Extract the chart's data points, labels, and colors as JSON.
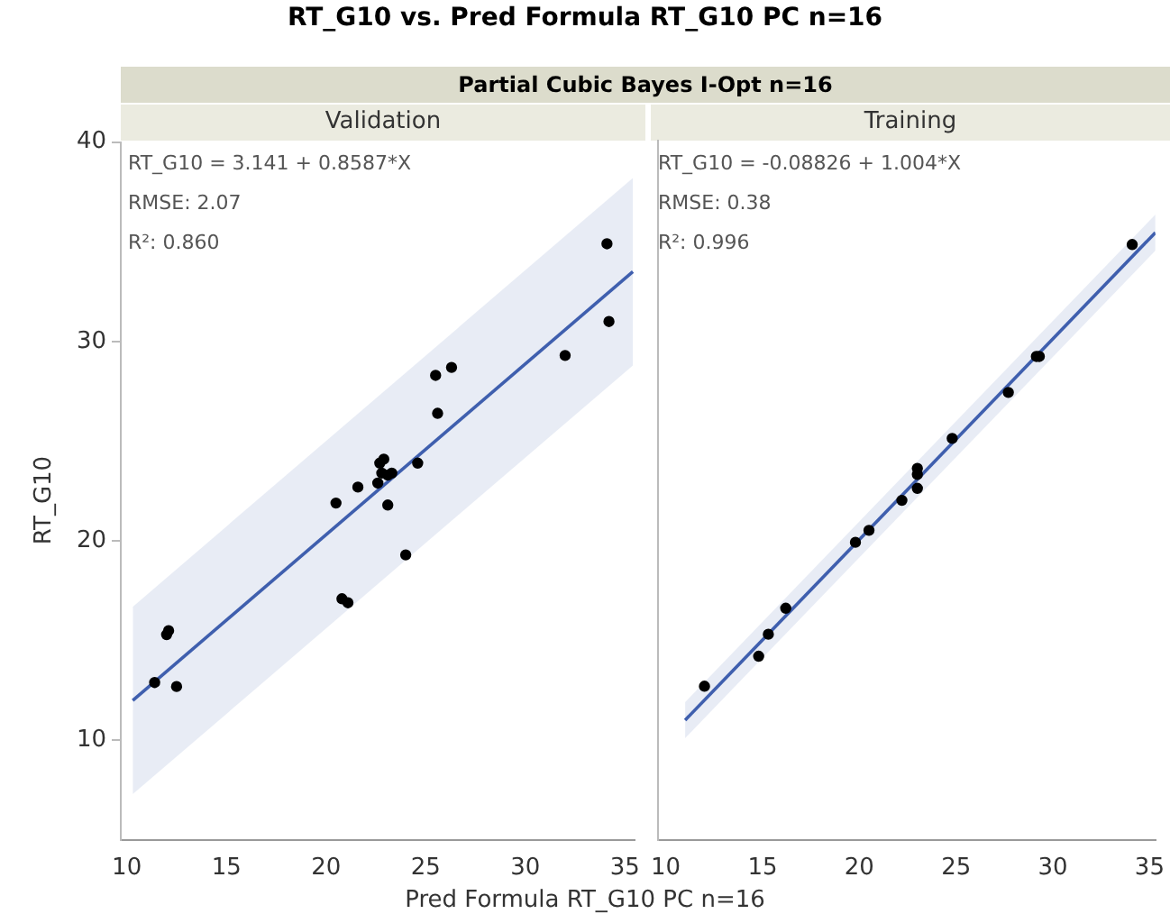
{
  "chart_data": [
    {
      "type": "scatter",
      "title": "RT_G10 vs. Pred Formula RT_G10 PC n=16",
      "subtitle": "Partial Cubic Bayes I-Opt n=16",
      "xlabel": "Pred Formula RT_G10 PC n=16",
      "ylabel": "RT_G10",
      "annotations": [
        "Validation",
        "RT_G10 = 3.141 + 0.8587*X",
        "RMSE: 2.07",
        "R²: 0.860"
      ],
      "xlim": [
        9.7,
        35.5
      ],
      "xticks": [
        10,
        15,
        20,
        25,
        30,
        35
      ],
      "ylim": [
        5,
        40
      ],
      "yticks": [
        10,
        20,
        30,
        40
      ],
      "grid": false,
      "legend": false,
      "series": [
        {
          "color": "#000000",
          "marker": "circle",
          "x": [
            34.1,
            34.2,
            32.0,
            25.5,
            26.3,
            25.6,
            24.6,
            22.9,
            22.7,
            22.8,
            23.1,
            23.3,
            22.6,
            21.6,
            20.5,
            23.1,
            24.0,
            20.8,
            21.1,
            12.1,
            12.0,
            11.4,
            12.5
          ],
          "values": [
            34.9,
            31.0,
            29.3,
            28.3,
            28.7,
            26.4,
            23.9,
            24.1,
            23.9,
            23.4,
            23.3,
            23.4,
            22.9,
            22.7,
            21.9,
            21.8,
            19.3,
            17.1,
            16.9,
            15.5,
            15.3,
            12.9,
            12.7
          ]
        },
        {
          "type": "line",
          "color": "#3f5fae",
          "marker": "none",
          "x": [
            10.3,
            35.4
          ],
          "values": [
            12.0,
            33.5
          ],
          "lower": [
            7.3,
            28.8
          ],
          "upper": [
            16.7,
            38.2
          ]
        }
      ]
    },
    {
      "type": "scatter",
      "annotations": [
        "Training",
        "RT_G10 = -0.08826 + 1.004*X",
        "RMSE: 0.38",
        "R²: 0.996"
      ],
      "xlim": [
        9.6,
        35.3
      ],
      "xticks": [
        10,
        15,
        20,
        25,
        30,
        35
      ],
      "ylim": [
        5,
        40
      ],
      "tick_labels": "x",
      "grid": false,
      "legend": false,
      "series": [
        {
          "color": "#000000",
          "marker": "circle",
          "x": [
            34.1,
            29.15,
            29.3,
            27.7,
            24.8,
            23.0,
            23.0,
            23.0,
            22.2,
            20.5,
            19.8,
            16.2,
            15.3,
            14.8,
            12.0
          ],
          "values": [
            34.8,
            29.2,
            29.2,
            27.4,
            25.1,
            23.6,
            23.3,
            22.6,
            22.0,
            20.5,
            19.9,
            16.6,
            15.3,
            14.2,
            12.7
          ]
        },
        {
          "type": "line",
          "color": "#3f5fae",
          "marker": "none",
          "x": [
            11.0,
            35.3
          ],
          "values": [
            11.0,
            35.4
          ],
          "lower": [
            10.1,
            34.5
          ],
          "upper": [
            11.9,
            36.3
          ]
        }
      ]
    }
  ]
}
